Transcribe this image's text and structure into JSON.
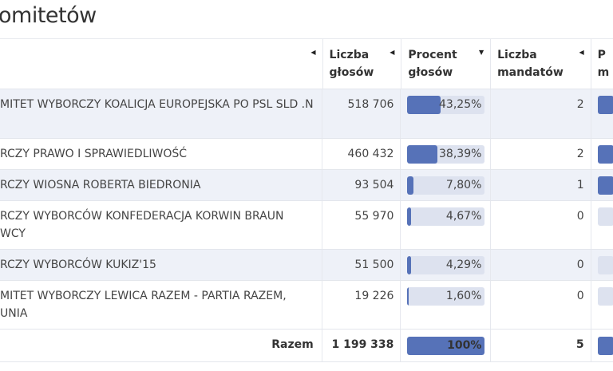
{
  "title": "omitetów",
  "headers": {
    "liczba_glosow": [
      "Liczba",
      "głosów"
    ],
    "procent_glosow": [
      "Procent",
      "głosów"
    ],
    "liczba_mandatow": [
      "Liczba",
      "mandatów"
    ],
    "procent_mandatow": [
      "P",
      "m"
    ]
  },
  "colors": {
    "bar_fill": "#5672b8",
    "bar_track": "#dde2ef",
    "row_shade": "#eef1f8"
  },
  "rows": [
    {
      "name": "MITET WYBORCZY KOALICJA EUROPEJSKA PO PSL SLD .N",
      "votes": "518 706",
      "percent": "43,25%",
      "pct": 43.25,
      "seats": "2",
      "seat_bar": true
    },
    {
      "name": "RCZY PRAWO I SPRAWIEDLIWOŚĆ",
      "votes": "460 432",
      "percent": "38,39%",
      "pct": 38.39,
      "seats": "2",
      "seat_bar": true
    },
    {
      "name": "RCZY WIOSNA ROBERTA BIEDRONIA",
      "votes": "93 504",
      "percent": "7,80%",
      "pct": 7.8,
      "seats": "1",
      "seat_bar": true
    },
    {
      "name": "RCZY WYBORCÓW KONFEDERACJA KORWIN BRAUN",
      "name2": "WCY",
      "votes": "55 970",
      "percent": "4,67%",
      "pct": 4.67,
      "seats": "0",
      "seat_bar": false
    },
    {
      "name": "RCZY WYBORCÓW KUKIZ'15",
      "votes": "51 500",
      "percent": "4,29%",
      "pct": 4.29,
      "seats": "0",
      "seat_bar": false
    },
    {
      "name": "MITET WYBORCZY LEWICA RAZEM - PARTIA RAZEM, UNIA",
      "votes": "19 226",
      "percent": "1,60%",
      "pct": 1.6,
      "seats": "0",
      "seat_bar": false
    }
  ],
  "total": {
    "label": "Razem",
    "votes": "1 199 338",
    "percent": "100%",
    "pct": 100,
    "seats": "5"
  }
}
